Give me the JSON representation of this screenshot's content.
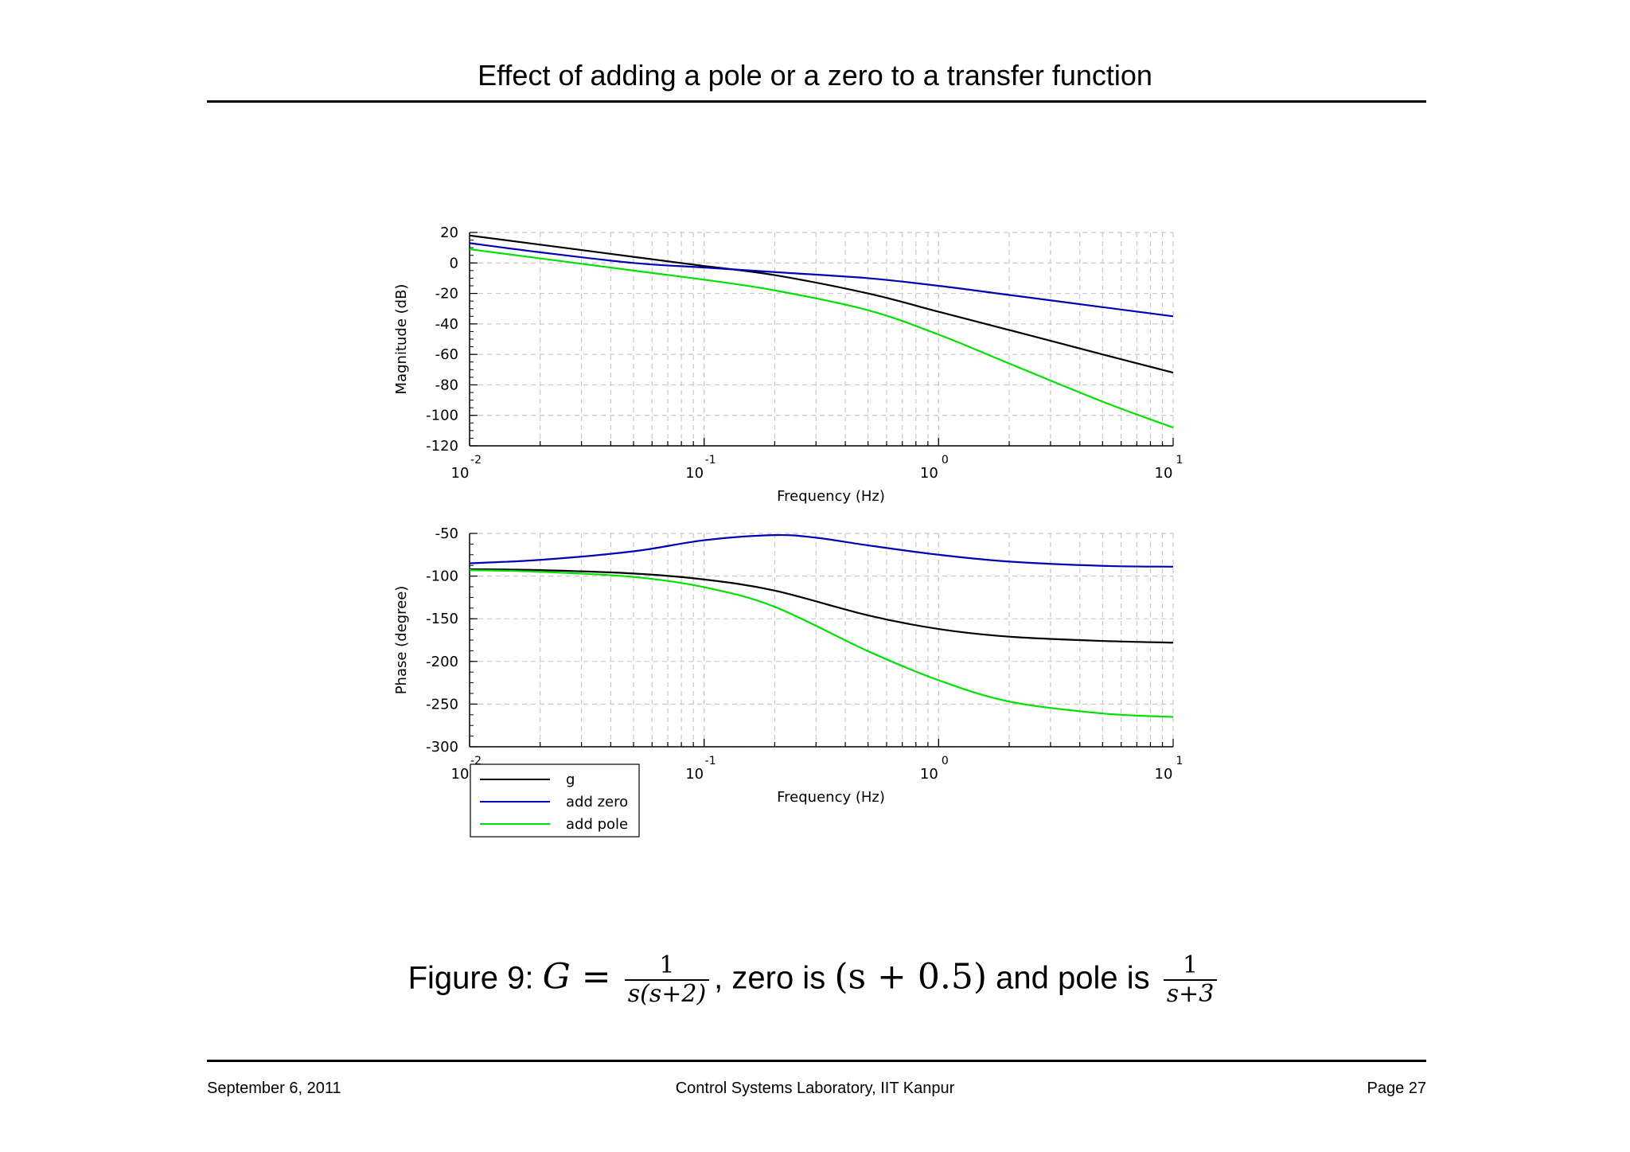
{
  "page": {
    "title": "Effect of adding a pole or a zero to a transfer function",
    "footer": {
      "date": "September 6, 2011",
      "center": "Control Systems Laboratory, IIT Kanpur",
      "page": "Page 27"
    }
  },
  "caption": {
    "prefix": "Figure 9: ",
    "g_lhs": "G =",
    "g_num": "1",
    "g_den": "s(s+2)",
    "mid": ", zero is ",
    "zero": "(s + 0.5)",
    "and_pole": " and pole is ",
    "pole_num": "1",
    "pole_den": "s+3"
  },
  "colors": {
    "g": "#000000",
    "add_zero": "#0000b4",
    "add_pole": "#00e000",
    "grid": "#c8c8c8"
  },
  "chart_data": [
    {
      "type": "line",
      "xscale": "log",
      "xlabel": "Frequency (Hz)",
      "ylabel": "Magnitude (dB)",
      "xlim": [
        0.01,
        10
      ],
      "ylim": [
        -120,
        20
      ],
      "yticks": [
        20,
        0,
        -20,
        -40,
        -60,
        -80,
        -100,
        -120
      ],
      "xticks": [
        {
          "base": "10",
          "exp": "-2"
        },
        {
          "base": "10",
          "exp": "-1"
        },
        {
          "base": "10",
          "exp": "0"
        },
        {
          "base": "10",
          "exp": "1"
        }
      ],
      "series": [
        {
          "name": "g",
          "color": "#000000",
          "x": [
            0.01,
            0.02,
            0.05,
            0.1,
            0.2,
            0.5,
            1,
            2,
            5,
            10
          ],
          "y": [
            18,
            12,
            4,
            -2,
            -8,
            -20,
            -32,
            -44,
            -60,
            -72
          ]
        },
        {
          "name": "add zero",
          "color": "#0000b4",
          "x": [
            0.01,
            0.02,
            0.05,
            0.1,
            0.2,
            0.5,
            1,
            2,
            5,
            10
          ],
          "y": [
            13,
            7,
            0,
            -3,
            -6,
            -10,
            -15,
            -21,
            -29,
            -35
          ]
        },
        {
          "name": "add pole",
          "color": "#00e000",
          "x": [
            0.01,
            0.02,
            0.05,
            0.1,
            0.2,
            0.5,
            1,
            2,
            5,
            10
          ],
          "y": [
            9,
            3,
            -5,
            -11,
            -18,
            -31,
            -47,
            -66,
            -91,
            -108
          ]
        }
      ]
    },
    {
      "type": "line",
      "xscale": "log",
      "xlabel": "Frequency (Hz)",
      "ylabel": "Phase (degree)",
      "xlim": [
        0.01,
        10
      ],
      "ylim": [
        -300,
        -50
      ],
      "yticks": [
        -50,
        -100,
        -150,
        -200,
        -250,
        -300
      ],
      "xticks": [
        {
          "base": "10",
          "exp": "-2"
        },
        {
          "base": "10",
          "exp": "-1"
        },
        {
          "base": "10",
          "exp": "0"
        },
        {
          "base": "10",
          "exp": "1"
        }
      ],
      "legend": "bottom-left",
      "series": [
        {
          "name": "g",
          "color": "#000000",
          "x": [
            0.01,
            0.02,
            0.05,
            0.1,
            0.2,
            0.5,
            1,
            2,
            5,
            10
          ],
          "y": [
            -92,
            -93,
            -97,
            -104,
            -117,
            -146,
            -162,
            -171,
            -176,
            -178
          ]
        },
        {
          "name": "add zero",
          "color": "#0000b4",
          "x": [
            0.01,
            0.02,
            0.05,
            0.1,
            0.2,
            0.3,
            0.5,
            1,
            2,
            5,
            10
          ],
          "y": [
            -85,
            -81,
            -71,
            -58,
            -52,
            -55,
            -64,
            -75,
            -83,
            -88,
            -89
          ]
        },
        {
          "name": "add pole",
          "color": "#00e000",
          "x": [
            0.01,
            0.02,
            0.05,
            0.1,
            0.2,
            0.5,
            1,
            2,
            5,
            10
          ],
          "y": [
            -93,
            -95,
            -101,
            -113,
            -136,
            -188,
            -222,
            -247,
            -261,
            -265
          ]
        }
      ]
    }
  ]
}
